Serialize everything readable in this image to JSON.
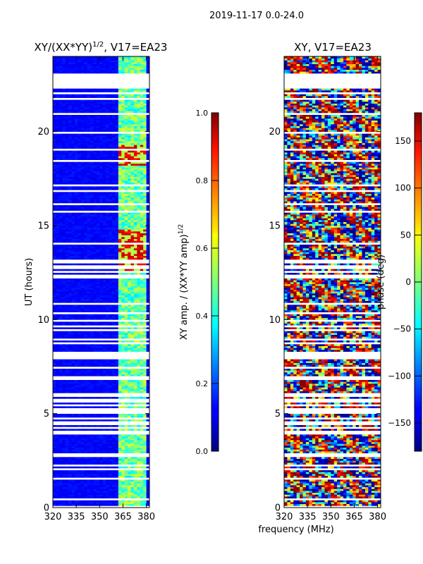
{
  "figure": {
    "suptitle": "2019-11-17 0.0-24.0",
    "shared_xlabel": "frequency (MHz)"
  },
  "chart_data": [
    {
      "type": "heatmap",
      "title_main": "XY/(XX*YY)",
      "title_sup": "1/2",
      "title_rest": ", V17=EA23",
      "xlabel": "",
      "ylabel": "UT (hours)",
      "xlim": [
        320,
        382
      ],
      "ylim": [
        0,
        24
      ],
      "xticks": [
        320,
        335,
        350,
        365,
        380
      ],
      "yticks": [
        0,
        5,
        10,
        15,
        20
      ],
      "colorscale": "jet",
      "colorbar": {
        "label_main": "XY amp. / (XX*YY amp)",
        "label_sup": "1/2",
        "lim": [
          0.0,
          1.0
        ],
        "ticks": [
          0.0,
          0.2,
          0.4,
          0.6,
          0.8,
          1.0
        ],
        "tick_labels": [
          "0.0",
          "0.2",
          "0.4",
          "0.6",
          "0.8",
          "1.0"
        ]
      }
    },
    {
      "type": "heatmap",
      "title": "XY, V17=EA23",
      "xlabel": "",
      "ylabel": "",
      "xlim": [
        320,
        382
      ],
      "ylim": [
        0,
        24
      ],
      "xticks": [
        320,
        335,
        350,
        365,
        380
      ],
      "yticks": [
        0,
        5,
        10,
        15,
        20
      ],
      "colorscale": "jet",
      "colorbar": {
        "label": "phase (deg)",
        "lim": [
          -180,
          180
        ],
        "ticks": [
          -150,
          -100,
          -50,
          0,
          50,
          100,
          150
        ],
        "tick_labels": [
          "−150",
          "−100",
          "−50",
          "0",
          "50",
          "100",
          "150"
        ]
      }
    }
  ]
}
